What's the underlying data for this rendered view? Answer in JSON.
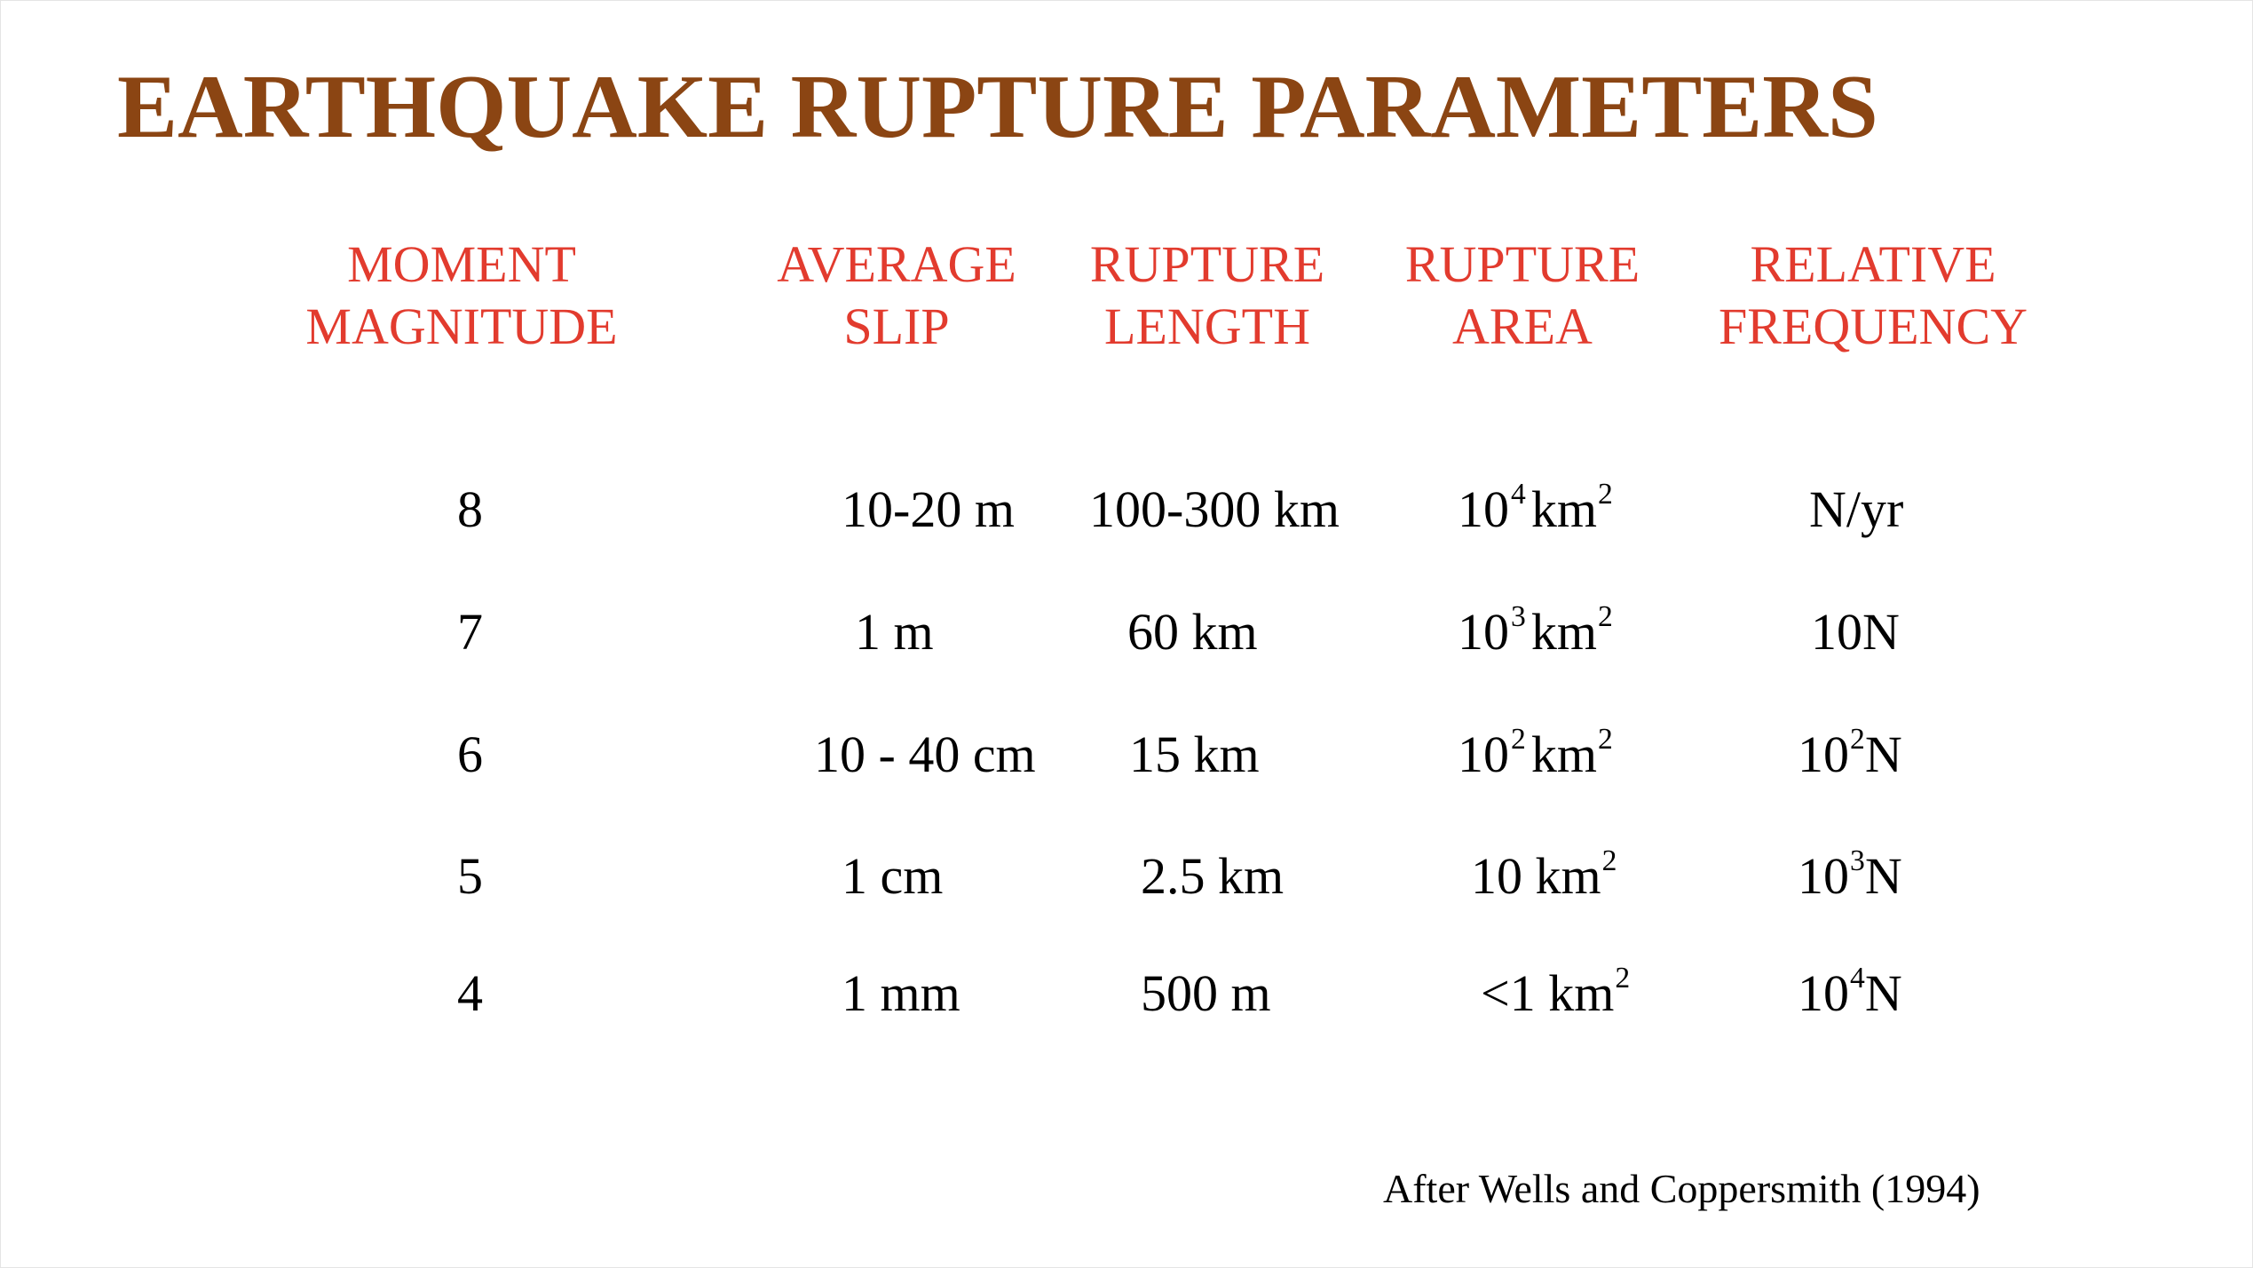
{
  "title": "EARTHQUAKE RUPTURE PARAMETERS",
  "columns": [
    {
      "line1": "MOMENT",
      "line2": "MAGNITUDE"
    },
    {
      "line1": "AVERAGE",
      "line2": "SLIP"
    },
    {
      "line1": "RUPTURE",
      "line2": "LENGTH"
    },
    {
      "line1": "RUPTURE",
      "line2": "AREA"
    },
    {
      "line1": "RELATIVE",
      "line2": "FREQUENCY"
    }
  ],
  "rows": [
    {
      "magnitude": "8",
      "slip": "10-20 m",
      "length": "100-300 km",
      "area": {
        "base": "10",
        "exp": "4",
        "unit": "km",
        "unit_exp": "2"
      },
      "frequency": {
        "base": "N/yr",
        "exp": ""
      }
    },
    {
      "magnitude": "7",
      "slip": "1 m",
      "length": "60 km",
      "area": {
        "base": "10",
        "exp": "3",
        "unit": "km",
        "unit_exp": "2"
      },
      "frequency": {
        "base": "10N",
        "exp": ""
      }
    },
    {
      "magnitude": "6",
      "slip": "10 - 40 cm",
      "length": "15 km",
      "area": {
        "base": "10",
        "exp": "2",
        "unit": "km",
        "unit_exp": "2"
      },
      "frequency": {
        "base": "10",
        "exp": "2",
        "suffix": "N"
      }
    },
    {
      "magnitude": "5",
      "slip": "1 cm",
      "length": "2.5 km",
      "area": {
        "base": "10",
        "exp": "",
        "unit": "km",
        "unit_exp": "2"
      },
      "frequency": {
        "base": "10",
        "exp": "3",
        "suffix": "N"
      }
    },
    {
      "magnitude": "4",
      "slip": "1 mm",
      "length": "500 m",
      "area": {
        "base": "<1",
        "exp": "",
        "unit": "km",
        "unit_exp": "2"
      },
      "frequency": {
        "base": "10",
        "exp": "4",
        "suffix": "N"
      }
    }
  ],
  "citation": "After Wells and Coppersmith (1994)"
}
